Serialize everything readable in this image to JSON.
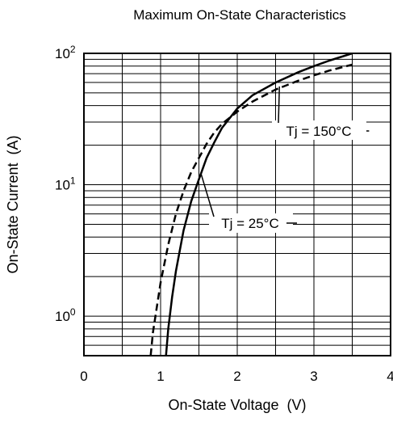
{
  "chart_data": {
    "type": "line",
    "title": "Maximum On-State Characteristics",
    "xlabel": "On-State Voltage  (V)",
    "ylabel": "On-State Current  (A)",
    "xlim": [
      0,
      4
    ],
    "ylim": [
      0.5,
      100
    ],
    "y_scale": "log",
    "grid": true,
    "x_ticks": [
      "0",
      "1",
      "2",
      "3",
      "4"
    ],
    "y_ticks": [
      {
        "base": "10",
        "exp": "0",
        "value": 1
      },
      {
        "base": "10",
        "exp": "1",
        "value": 10
      },
      {
        "base": "10",
        "exp": "2",
        "value": 100
      }
    ],
    "series": [
      {
        "name": "Tj = 25°C",
        "style": "solid",
        "x": [
          1.07,
          1.1,
          1.15,
          1.2,
          1.3,
          1.4,
          1.5,
          1.6,
          1.7,
          1.8,
          2.0,
          2.2,
          2.5,
          2.8,
          3.0,
          3.2,
          3.5
        ],
        "y": [
          0.5,
          0.8,
          1.4,
          2.2,
          4.5,
          7.5,
          11,
          16,
          21,
          27,
          38,
          48,
          60,
          72,
          80,
          88,
          100
        ]
      },
      {
        "name": "Tj = 150°C",
        "style": "dashed",
        "x": [
          0.87,
          0.9,
          1.0,
          1.1,
          1.2,
          1.3,
          1.4,
          1.5,
          1.6,
          1.7,
          1.8,
          2.0,
          2.2,
          2.5,
          2.8,
          3.0,
          3.2,
          3.5
        ],
        "y": [
          0.5,
          0.75,
          1.8,
          3.5,
          6,
          9,
          12.5,
          16,
          20.5,
          25,
          29,
          36,
          43,
          53,
          62,
          68,
          74,
          82
        ]
      }
    ],
    "annotations": [
      {
        "text": "Tj = 150°C",
        "series": "Tj = 150°C"
      },
      {
        "text": "Tj = 25°C",
        "series": "Tj = 25°C"
      }
    ]
  }
}
